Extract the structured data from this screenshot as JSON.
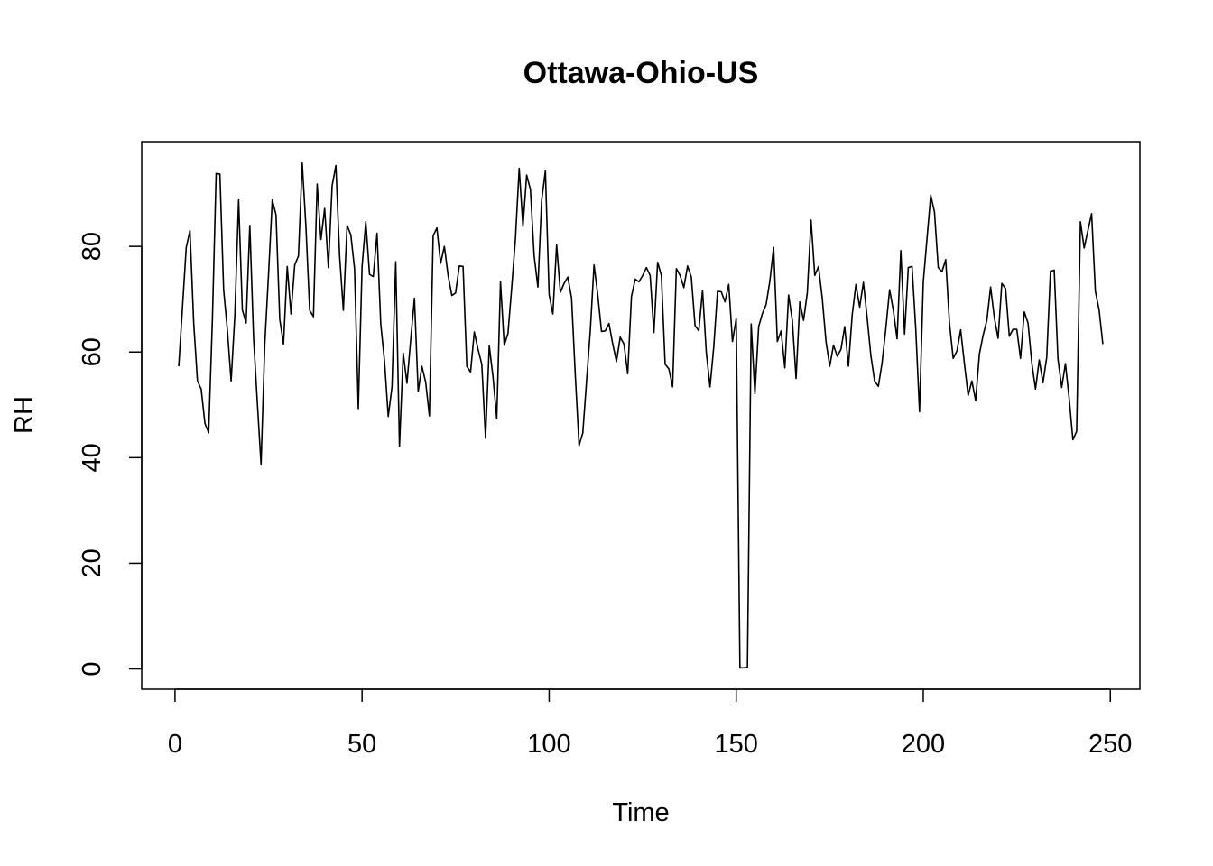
{
  "chart_data": {
    "type": "line",
    "title": "Ottawa-Ohio-US",
    "xlabel": "Time",
    "ylabel": "RH",
    "xlim": [
      -8.9,
      257.9
    ],
    "ylim": [
      -3.84,
      99.84
    ],
    "xticks": [
      0,
      50,
      100,
      150,
      200,
      250
    ],
    "yticks": [
      0,
      20,
      40,
      60,
      80
    ],
    "grid": false,
    "legend": "none",
    "line_color": "#000000",
    "series": [
      {
        "x": [
          1,
          2,
          3,
          4,
          5,
          6,
          7,
          8,
          9,
          10,
          11,
          12,
          13,
          14,
          15,
          16,
          17,
          18,
          19,
          20,
          21,
          22,
          23,
          24,
          25,
          26,
          27,
          28,
          29,
          30,
          31,
          32,
          33,
          34,
          35,
          36,
          37,
          38,
          39,
          40,
          41,
          42,
          43,
          44,
          45,
          46,
          47,
          48,
          49,
          50,
          51,
          52,
          53,
          54,
          55,
          56,
          57,
          58,
          59,
          60,
          61,
          62,
          63,
          64,
          65,
          66,
          67,
          68,
          69,
          70,
          71,
          72,
          73,
          74,
          75,
          76,
          77,
          78,
          79,
          80,
          81,
          82,
          83,
          84,
          85,
          86,
          87,
          88,
          89,
          90,
          91,
          92,
          93,
          94,
          95,
          96,
          97,
          98,
          99,
          100,
          101,
          102,
          103,
          104,
          105,
          106,
          107,
          108,
          109,
          110,
          111,
          112,
          113,
          114,
          115,
          116,
          117,
          118,
          119,
          120,
          121,
          122,
          123,
          124,
          125,
          126,
          127,
          128,
          129,
          130,
          131,
          132,
          133,
          134,
          135,
          136,
          137,
          138,
          139,
          140,
          141,
          142,
          143,
          144,
          145,
          146,
          147,
          148,
          149,
          150,
          151,
          152,
          153,
          154,
          155,
          156,
          157,
          158,
          159,
          160,
          161,
          162,
          163,
          164,
          165,
          166,
          167,
          168,
          169,
          170,
          171,
          172,
          173,
          174,
          175,
          176,
          177,
          178,
          179,
          180,
          181,
          182,
          183,
          184,
          185,
          186,
          187,
          188,
          189,
          190,
          191,
          192,
          193,
          194,
          195,
          196,
          197,
          198,
          199,
          200,
          201,
          202,
          203,
          204,
          205,
          206,
          207,
          208,
          209,
          210,
          211,
          212,
          213,
          214,
          215,
          216,
          217,
          218,
          219,
          220,
          221,
          222,
          223,
          224,
          225,
          226,
          227,
          228,
          229,
          230,
          231,
          232,
          233,
          234,
          235,
          236,
          237,
          238,
          239,
          240,
          241,
          242,
          243,
          244,
          245,
          246,
          247,
          248
        ],
        "y": [
          57.3,
          68.5,
          79.8,
          83.0,
          65.5,
          54.5,
          53.0,
          46.5,
          44.7,
          66.2,
          93.8,
          93.7,
          71.8,
          64.2,
          54.5,
          67.0,
          88.8,
          68.0,
          65.5,
          84.0,
          62.7,
          50.5,
          38.7,
          61.5,
          74.7,
          88.8,
          86.0,
          66.2,
          61.5,
          76.2,
          67.2,
          76.5,
          78.2,
          95.8,
          83.7,
          67.9,
          66.7,
          91.8,
          81.3,
          87.2,
          76.0,
          91.5,
          95.3,
          78.2,
          67.9,
          84.0,
          82.2,
          75.7,
          49.3,
          76.2,
          84.7,
          74.7,
          74.3,
          82.5,
          65.3,
          58.3,
          47.8,
          53.4,
          77.1,
          42.1,
          59.8,
          54.1,
          62.3,
          70.2,
          52.5,
          57.3,
          54.3,
          47.9,
          82.0,
          83.5,
          76.8,
          80.0,
          74.5,
          70.7,
          71.2,
          76.3,
          76.2,
          57.3,
          56.2,
          63.8,
          60.5,
          57.7,
          43.7,
          61.2,
          55.3,
          47.4,
          73.3,
          61.3,
          63.5,
          72.2,
          81.5,
          94.8,
          83.8,
          93.5,
          90.8,
          78.2,
          72.3,
          88.7,
          94.3,
          70.9,
          67.2,
          80.3,
          71.3,
          73.0,
          74.2,
          70.2,
          55.5,
          42.3,
          44.7,
          54.5,
          64.0,
          76.5,
          70.8,
          63.9,
          64.0,
          65.4,
          61.5,
          58.2,
          62.8,
          61.5,
          55.9,
          70.5,
          73.8,
          73.3,
          74.5,
          76.0,
          74.5,
          63.7,
          77.0,
          74.5,
          57.7,
          56.8,
          53.4,
          75.8,
          74.5,
          72.2,
          76.3,
          74.2,
          65.0,
          64.0,
          71.7,
          60.0,
          53.4,
          61.0,
          71.5,
          71.4,
          69.5,
          72.8,
          62.0,
          66.3,
          0.2,
          0.2,
          0.3,
          65.3,
          52.1,
          64.8,
          67.3,
          69.0,
          73.5,
          79.8,
          62.0,
          64.0,
          57.0,
          70.8,
          66.0,
          55.0,
          69.5,
          66.0,
          71.2,
          85.0,
          74.5,
          76.2,
          70.2,
          62.0,
          57.3,
          61.3,
          59.2,
          60.5,
          64.8,
          57.3,
          67.0,
          72.8,
          68.5,
          73.2,
          66.5,
          59.3,
          54.5,
          53.5,
          58.0,
          64.5,
          71.8,
          67.9,
          62.5,
          79.2,
          63.4,
          76.0,
          76.2,
          64.3,
          48.7,
          73.2,
          81.5,
          89.7,
          86.5,
          76.0,
          75.2,
          77.5,
          65.5,
          58.8,
          60.2,
          64.2,
          57.8,
          51.8,
          54.5,
          50.8,
          59.6,
          63.2,
          66.0,
          72.3,
          66.5,
          62.6,
          73.0,
          72.0,
          63.0,
          64.3,
          64.3,
          58.8,
          67.6,
          65.5,
          58.0,
          53.0,
          58.5,
          54.2,
          59.0,
          75.3,
          75.5,
          58.7,
          53.3,
          57.8,
          51.2,
          43.4,
          45.0,
          84.7,
          79.7,
          83.0,
          86.2,
          71.5,
          68.0,
          61.5
        ]
      }
    ]
  }
}
